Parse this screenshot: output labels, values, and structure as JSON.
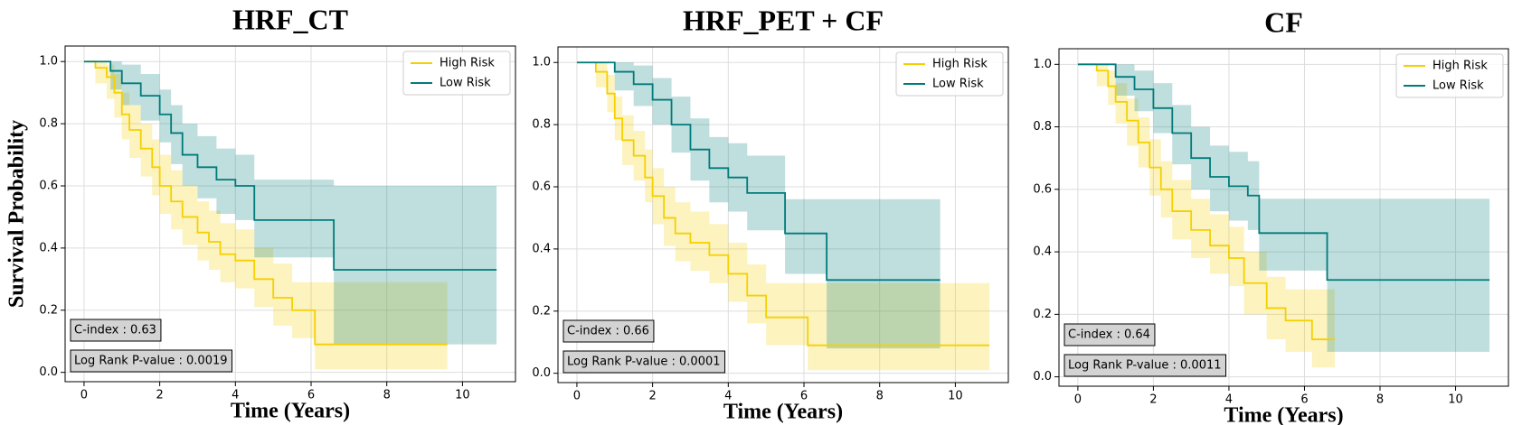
{
  "chart_data": [
    {
      "type": "line",
      "step": true,
      "title": "HRF_CT",
      "x_label": "Time (Years)",
      "y_label": "Survival Probability",
      "xlim": [
        -0.5,
        11.4
      ],
      "ylim": [
        -0.03,
        1.05
      ],
      "xticks": [
        0,
        2,
        4,
        6,
        8,
        10
      ],
      "yticks": [
        {
          "value": 0,
          "label": "0.0"
        },
        0.2,
        0.4,
        0.6,
        0.8,
        {
          "value": 1,
          "label": "1.0"
        }
      ],
      "grid": true,
      "legend": "upper right",
      "annotations": [
        "C-index : 0.63",
        "Log Rank P-value : 0.0019"
      ],
      "series": [
        {
          "name": "High Risk",
          "color": "#f5d000",
          "x": [
            0,
            0.3,
            0.6,
            0.8,
            1.0,
            1.2,
            1.5,
            1.8,
            2.0,
            2.3,
            2.6,
            3.0,
            3.3,
            3.6,
            4.0,
            4.5,
            5.0,
            5.5,
            6.1,
            9.6
          ],
          "values": [
            1.0,
            0.98,
            0.95,
            0.9,
            0.83,
            0.78,
            0.72,
            0.66,
            0.6,
            0.55,
            0.5,
            0.45,
            0.42,
            0.38,
            0.36,
            0.3,
            0.24,
            0.2,
            0.09,
            0.09
          ],
          "ci_lower": [
            1.0,
            0.93,
            0.88,
            0.82,
            0.75,
            0.69,
            0.63,
            0.57,
            0.51,
            0.46,
            0.41,
            0.36,
            0.33,
            0.29,
            0.27,
            0.21,
            0.15,
            0.11,
            0.01,
            0.01
          ],
          "ci_upper": [
            1.0,
            1.0,
            0.99,
            0.96,
            0.9,
            0.86,
            0.8,
            0.75,
            0.7,
            0.65,
            0.6,
            0.55,
            0.52,
            0.48,
            0.46,
            0.4,
            0.35,
            0.29,
            0.29,
            0.29
          ]
        },
        {
          "name": "Low Risk",
          "color": "#007b7b",
          "x": [
            0,
            0.7,
            1.0,
            1.5,
            2.0,
            2.3,
            2.6,
            3.0,
            3.5,
            4.0,
            4.5,
            6.6,
            10.9
          ],
          "values": [
            1.0,
            0.97,
            0.93,
            0.89,
            0.83,
            0.77,
            0.7,
            0.66,
            0.62,
            0.6,
            0.49,
            0.33,
            0.33
          ],
          "ci_lower": [
            1.0,
            0.91,
            0.86,
            0.81,
            0.74,
            0.67,
            0.6,
            0.56,
            0.51,
            0.49,
            0.37,
            0.09,
            0.09
          ],
          "ci_upper": [
            1.0,
            1.0,
            0.99,
            0.96,
            0.91,
            0.86,
            0.8,
            0.76,
            0.72,
            0.7,
            0.62,
            0.6,
            0.6
          ]
        }
      ]
    },
    {
      "type": "line",
      "step": true,
      "title": "HRF_PET + CF",
      "x_label": "Time (Years)",
      "xlim": [
        -0.5,
        11.4
      ],
      "ylim": [
        -0.03,
        1.05
      ],
      "xticks": [
        0,
        2,
        4,
        6,
        8,
        10
      ],
      "yticks": [
        {
          "value": 0,
          "label": "0.0"
        },
        0.2,
        0.4,
        0.6,
        0.8,
        {
          "value": 1,
          "label": "1.0"
        }
      ],
      "grid": true,
      "legend": "upper right",
      "annotations": [
        "C-index : 0.66",
        "Log Rank P-value : 0.0001"
      ],
      "series": [
        {
          "name": "High Risk",
          "color": "#f5d000",
          "x": [
            0,
            0.5,
            0.8,
            1.0,
            1.2,
            1.5,
            1.8,
            2.0,
            2.3,
            2.6,
            3.0,
            3.5,
            4.0,
            4.5,
            5.0,
            6.1,
            10.9
          ],
          "values": [
            1.0,
            0.97,
            0.9,
            0.82,
            0.75,
            0.7,
            0.63,
            0.57,
            0.5,
            0.45,
            0.42,
            0.38,
            0.32,
            0.25,
            0.18,
            0.09,
            0.09
          ],
          "ci_lower": [
            1.0,
            0.92,
            0.84,
            0.75,
            0.67,
            0.62,
            0.55,
            0.48,
            0.41,
            0.36,
            0.33,
            0.29,
            0.23,
            0.16,
            0.09,
            0.01,
            0.01
          ],
          "ci_upper": [
            1.0,
            1.0,
            0.96,
            0.89,
            0.83,
            0.78,
            0.72,
            0.66,
            0.6,
            0.55,
            0.52,
            0.48,
            0.42,
            0.35,
            0.29,
            0.29,
            0.29
          ]
        },
        {
          "name": "Low Risk",
          "color": "#007b7b",
          "x": [
            0,
            1.0,
            1.5,
            2.0,
            2.5,
            3.0,
            3.5,
            4.0,
            4.5,
            5.5,
            6.6,
            9.6
          ],
          "values": [
            1.0,
            0.97,
            0.93,
            0.88,
            0.8,
            0.72,
            0.66,
            0.63,
            0.58,
            0.45,
            0.3,
            0.3
          ],
          "ci_lower": [
            1.0,
            0.91,
            0.86,
            0.8,
            0.71,
            0.62,
            0.55,
            0.52,
            0.46,
            0.32,
            0.08,
            0.08
          ],
          "ci_upper": [
            1.0,
            1.0,
            0.99,
            0.95,
            0.89,
            0.82,
            0.76,
            0.74,
            0.7,
            0.56,
            0.56,
            0.56
          ]
        }
      ]
    },
    {
      "type": "line",
      "step": true,
      "title": "CF",
      "x_label": "Time (Years)",
      "xlim": [
        -0.5,
        11.4
      ],
      "ylim": [
        -0.03,
        1.05
      ],
      "xticks": [
        0,
        2,
        4,
        6,
        8,
        10
      ],
      "yticks": [
        {
          "value": 0,
          "label": "0.0"
        },
        0.2,
        0.4,
        0.6,
        0.8,
        {
          "value": 1,
          "label": "1.0"
        }
      ],
      "grid": true,
      "legend": "upper right",
      "annotations": [
        "C-index : 0.64",
        "Log Rank P-value : 0.0011"
      ],
      "series": [
        {
          "name": "High Risk",
          "color": "#f5d000",
          "x": [
            0,
            0.5,
            0.8,
            1.0,
            1.3,
            1.6,
            1.9,
            2.2,
            2.5,
            3.0,
            3.5,
            4.0,
            4.4,
            5.0,
            5.5,
            6.2,
            6.8
          ],
          "values": [
            1.0,
            0.98,
            0.93,
            0.88,
            0.82,
            0.75,
            0.67,
            0.6,
            0.53,
            0.47,
            0.42,
            0.38,
            0.3,
            0.22,
            0.18,
            0.12,
            0.12
          ],
          "ci_lower": [
            1.0,
            0.93,
            0.87,
            0.81,
            0.74,
            0.67,
            0.58,
            0.51,
            0.44,
            0.38,
            0.33,
            0.29,
            0.2,
            0.12,
            0.08,
            0.03,
            0.03
          ],
          "ci_upper": [
            1.0,
            1.0,
            0.98,
            0.94,
            0.89,
            0.83,
            0.76,
            0.69,
            0.63,
            0.57,
            0.52,
            0.48,
            0.4,
            0.32,
            0.28,
            0.28,
            0.28
          ]
        },
        {
          "name": "Low Risk",
          "color": "#007b7b",
          "x": [
            0,
            1.0,
            1.5,
            2.0,
            2.5,
            3.0,
            3.5,
            4.0,
            4.5,
            4.8,
            6.6,
            10.9
          ],
          "values": [
            1.0,
            0.96,
            0.92,
            0.86,
            0.78,
            0.7,
            0.64,
            0.61,
            0.58,
            0.46,
            0.31,
            0.31
          ],
          "ci_lower": [
            1.0,
            0.9,
            0.85,
            0.78,
            0.68,
            0.6,
            0.53,
            0.5,
            0.47,
            0.34,
            0.08,
            0.08
          ],
          "ci_upper": [
            1.0,
            1.0,
            0.98,
            0.94,
            0.87,
            0.8,
            0.74,
            0.72,
            0.69,
            0.57,
            0.57,
            0.57
          ]
        }
      ]
    }
  ]
}
